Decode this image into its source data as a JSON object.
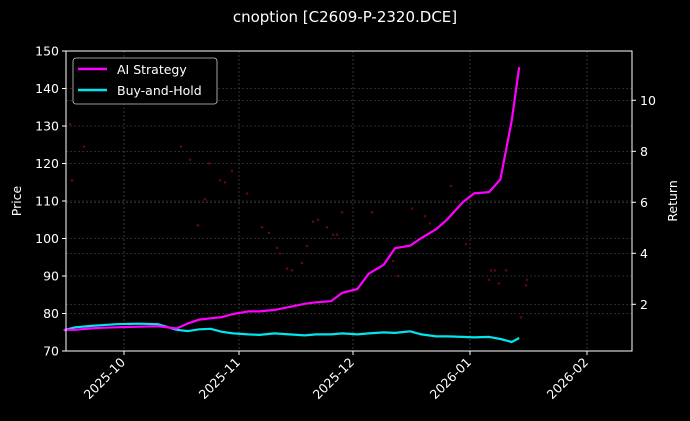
{
  "chart_data": {
    "type": "line",
    "title": "cnoption [C2609-P-2320.DCE]",
    "xlabel": "",
    "ylabel": "Price",
    "y2label": "Return",
    "ylim": [
      70,
      150
    ],
    "y2lim": [
      0.15,
      11.9
    ],
    "yticks": [
      70,
      80,
      90,
      100,
      110,
      120,
      130,
      140,
      150
    ],
    "y2ticks": [
      2,
      4,
      6,
      8,
      10
    ],
    "xticks": [
      "2025-10",
      "2025-11",
      "2025-12",
      "2026-01",
      "2026-02"
    ],
    "grid": true,
    "legend_position": "upper left",
    "legend": [
      "AI Strategy",
      "Buy-and-Hold"
    ],
    "x": [
      "2025-09-15",
      "2025-09-18",
      "2025-09-22",
      "2025-09-25",
      "2025-09-29",
      "2025-10-05",
      "2025-10-10",
      "2025-10-15",
      "2025-10-18",
      "2025-10-21",
      "2025-10-24",
      "2025-10-27",
      "2025-10-30",
      "2025-11-03",
      "2025-11-06",
      "2025-11-10",
      "2025-11-14",
      "2025-11-18",
      "2025-11-21",
      "2025-11-25",
      "2025-11-28",
      "2025-12-02",
      "2025-12-05",
      "2025-12-09",
      "2025-12-12",
      "2025-12-16",
      "2025-12-19",
      "2025-12-23",
      "2025-12-26",
      "2025-12-30",
      "2026-01-02",
      "2026-01-06",
      "2026-01-09",
      "2026-01-12",
      "2026-01-14"
    ],
    "series": [
      {
        "name": "AI Strategy",
        "axis": "right",
        "color": "#ff00ff",
        "values": [
          1.0,
          1.0,
          1.05,
          1.08,
          1.1,
          1.12,
          1.14,
          1.05,
          1.25,
          1.4,
          1.45,
          1.5,
          1.62,
          1.72,
          1.72,
          1.78,
          1.9,
          2.02,
          2.08,
          2.12,
          2.45,
          2.6,
          3.2,
          3.55,
          4.2,
          4.3,
          4.6,
          4.95,
          5.35,
          6.0,
          6.35,
          6.4,
          6.9,
          9.2,
          11.3
        ]
      },
      {
        "name": "Buy-and-Hold",
        "axis": "right",
        "color": "#00e5ee",
        "values": [
          0.98,
          1.1,
          1.15,
          1.18,
          1.22,
          1.24,
          1.22,
          1.0,
          0.95,
          1.02,
          1.04,
          0.92,
          0.86,
          0.82,
          0.8,
          0.86,
          0.82,
          0.78,
          0.82,
          0.82,
          0.86,
          0.82,
          0.86,
          0.9,
          0.88,
          0.94,
          0.82,
          0.74,
          0.74,
          0.72,
          0.7,
          0.72,
          0.64,
          0.52,
          0.68
        ]
      },
      {
        "name": "Price (faint markers)",
        "axis": "left",
        "color": "#5a0a14",
        "type": "scatter",
        "points": [
          [
            70,
            130.5
          ],
          [
            72,
            115.5
          ],
          [
            84,
            124.5
          ],
          [
            181,
            124.5
          ],
          [
            190,
            121
          ],
          [
            198,
            103.5
          ],
          [
            205,
            110.5
          ],
          [
            209,
            120
          ],
          [
            220,
            115.5
          ],
          [
            225,
            115
          ],
          [
            232,
            118
          ],
          [
            247,
            112
          ],
          [
            262,
            103
          ],
          [
            269,
            101.5
          ],
          [
            277,
            97.5
          ],
          [
            280,
            96
          ],
          [
            287,
            92
          ],
          [
            292,
            91.5
          ],
          [
            302,
            93.5
          ],
          [
            307,
            98
          ],
          [
            313,
            104.5
          ],
          [
            318,
            105
          ],
          [
            327,
            103
          ],
          [
            333,
            101
          ],
          [
            337,
            101
          ],
          [
            342,
            107
          ],
          [
            372,
            107
          ],
          [
            393,
            94
          ],
          [
            398,
            90
          ],
          [
            412,
            108
          ],
          [
            425,
            106
          ],
          [
            430,
            104
          ],
          [
            451,
            114
          ],
          [
            466,
            98.5
          ],
          [
            489,
            89
          ],
          [
            491,
            91.5
          ],
          [
            495,
            91.5
          ],
          [
            499,
            88
          ],
          [
            506,
            91.5
          ],
          [
            521,
            79
          ],
          [
            526,
            87.5
          ],
          [
            527,
            89
          ]
        ]
      }
    ]
  }
}
